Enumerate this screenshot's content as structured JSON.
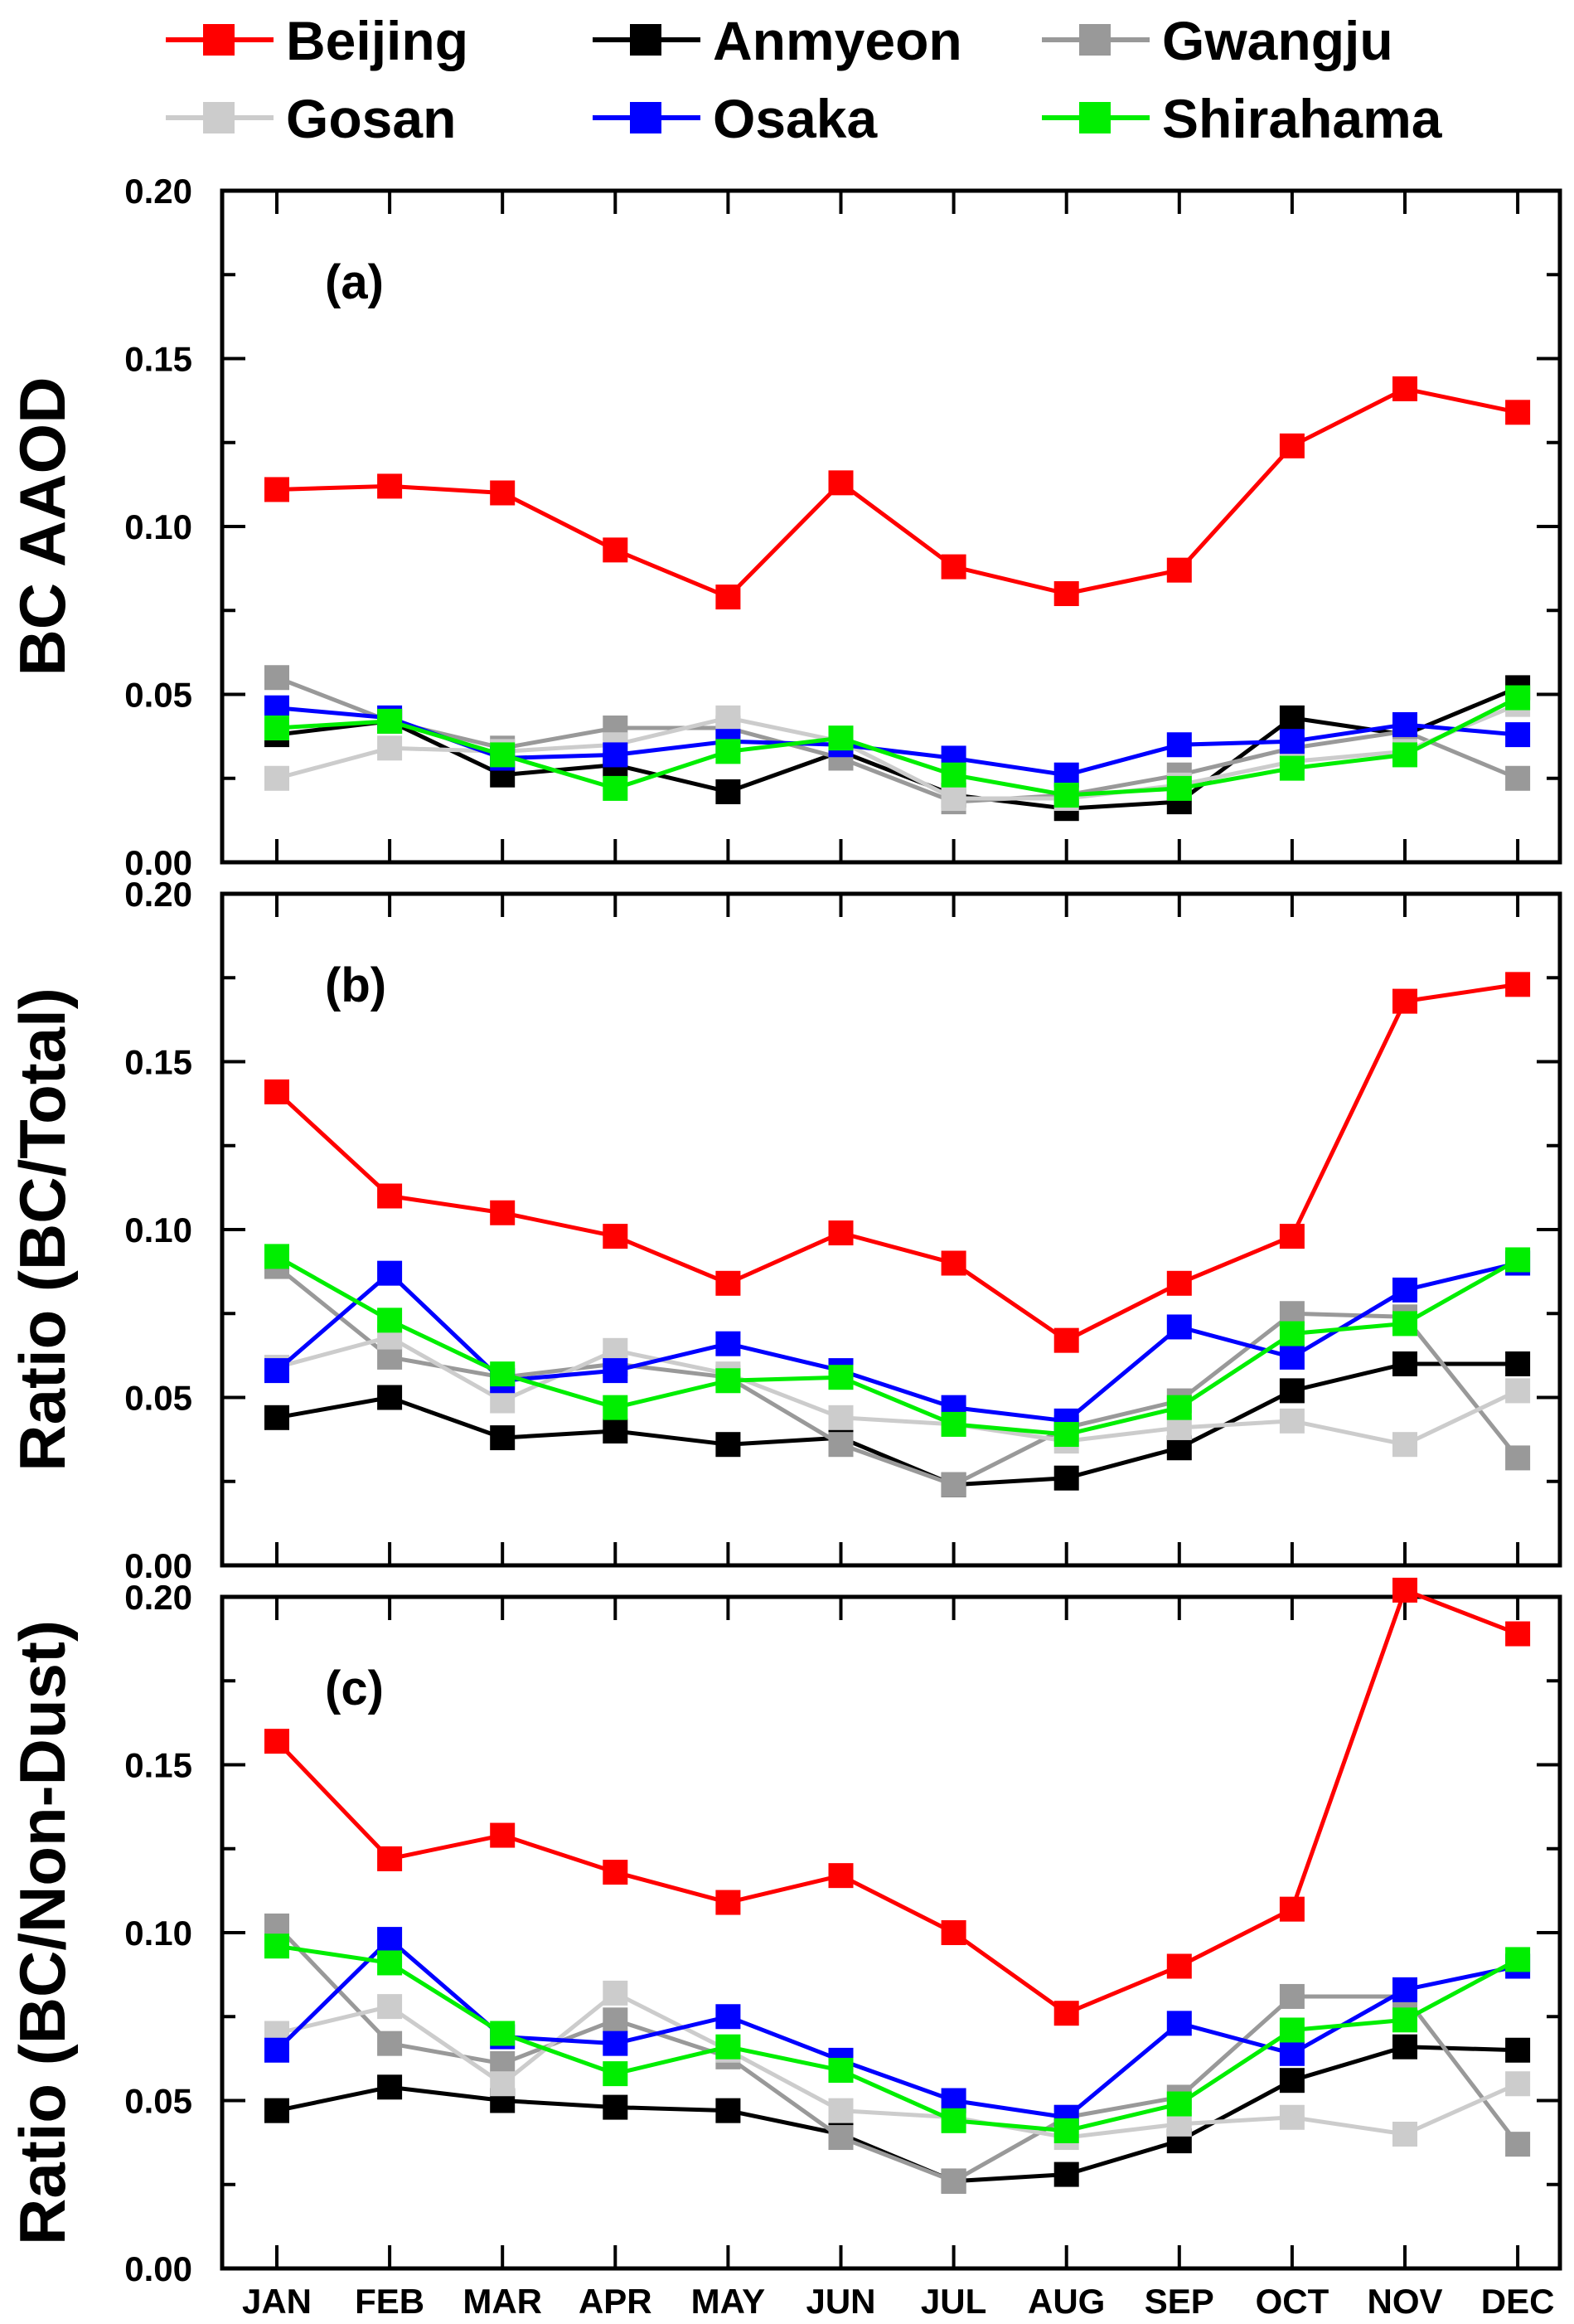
{
  "legend": {
    "placement": "top",
    "entries": [
      "Beijing",
      "Anmyeon",
      "Gwangju",
      "Gosan",
      "Osaka",
      "Shirahama"
    ]
  },
  "colors": {
    "Beijing": "#ff0000",
    "Anmyeon": "#000000",
    "Gwangju": "#999999",
    "Gosan": "#cccccc",
    "Osaka": "#0000ff",
    "Shirahama": "#00ee00"
  },
  "chart_data": [
    {
      "type": "line",
      "panel": "(a)",
      "ylabel": "BC AAOD",
      "ylim": [
        0,
        0.2
      ],
      "yticks": [
        "0.00",
        "0.05",
        "0.10",
        "0.15",
        "0.20"
      ],
      "categories": [
        "JAN",
        "FEB",
        "MAR",
        "APR",
        "MAY",
        "JUN",
        "JUL",
        "AUG",
        "SEP",
        "OCT",
        "NOV",
        "DEC"
      ],
      "series": [
        {
          "name": "Beijing",
          "values": [
            0.111,
            0.112,
            0.11,
            0.093,
            0.079,
            0.113,
            0.088,
            0.08,
            0.087,
            0.124,
            0.141,
            0.134
          ]
        },
        {
          "name": "Anmyeon",
          "values": [
            0.038,
            0.042,
            0.026,
            0.029,
            0.021,
            0.033,
            0.02,
            0.016,
            0.018,
            0.043,
            0.038,
            0.052
          ]
        },
        {
          "name": "Gwangju",
          "values": [
            0.055,
            0.042,
            0.034,
            0.04,
            0.04,
            0.031,
            0.018,
            0.02,
            0.026,
            0.034,
            0.039,
            0.025
          ]
        },
        {
          "name": "Gosan",
          "values": [
            0.025,
            0.034,
            0.033,
            0.035,
            0.043,
            0.036,
            0.019,
            0.019,
            0.023,
            0.03,
            0.033,
            0.047
          ]
        },
        {
          "name": "Osaka",
          "values": [
            0.046,
            0.043,
            0.031,
            0.032,
            0.036,
            0.035,
            0.031,
            0.026,
            0.035,
            0.036,
            0.041,
            0.038
          ]
        },
        {
          "name": "Shirahama",
          "values": [
            0.04,
            0.042,
            0.032,
            0.022,
            0.033,
            0.037,
            0.026,
            0.02,
            0.022,
            0.028,
            0.032,
            0.049
          ]
        }
      ]
    },
    {
      "type": "line",
      "panel": "(b)",
      "ylabel": "Ratio (BC/Total)",
      "ylim": [
        0,
        0.2
      ],
      "yticks": [
        "0.00",
        "0.05",
        "0.10",
        "0.15",
        "0.20"
      ],
      "categories": [
        "JAN",
        "FEB",
        "MAR",
        "APR",
        "MAY",
        "JUN",
        "JUL",
        "AUG",
        "SEP",
        "OCT",
        "NOV",
        "DEC"
      ],
      "series": [
        {
          "name": "Beijing",
          "values": [
            0.141,
            0.11,
            0.105,
            0.098,
            0.084,
            0.099,
            0.09,
            0.067,
            0.084,
            0.098,
            0.168,
            0.173
          ]
        },
        {
          "name": "Anmyeon",
          "values": [
            0.044,
            0.05,
            0.038,
            0.04,
            0.036,
            0.038,
            0.024,
            0.026,
            0.035,
            0.052,
            0.06,
            0.06
          ]
        },
        {
          "name": "Gwangju",
          "values": [
            0.089,
            0.062,
            0.056,
            0.06,
            0.056,
            0.036,
            0.024,
            0.041,
            0.049,
            0.075,
            0.074,
            0.032
          ]
        },
        {
          "name": "Gosan",
          "values": [
            0.059,
            0.068,
            0.049,
            0.064,
            0.057,
            0.044,
            0.042,
            0.037,
            0.041,
            0.043,
            0.036,
            0.052
          ]
        },
        {
          "name": "Osaka",
          "values": [
            0.058,
            0.087,
            0.055,
            0.058,
            0.066,
            0.058,
            0.047,
            0.043,
            0.071,
            0.062,
            0.082,
            0.09
          ]
        },
        {
          "name": "Shirahama",
          "values": [
            0.092,
            0.073,
            0.057,
            0.047,
            0.055,
            0.056,
            0.042,
            0.039,
            0.047,
            0.069,
            0.072,
            0.091
          ]
        }
      ]
    },
    {
      "type": "line",
      "panel": "(c)",
      "ylabel": "Ratio (BC/Non-Dust)",
      "ylim": [
        0,
        0.2
      ],
      "yticks": [
        "0.00",
        "0.05",
        "0.10",
        "0.15",
        "0.20"
      ],
      "categories": [
        "JAN",
        "FEB",
        "MAR",
        "APR",
        "MAY",
        "JUN",
        "JUL",
        "AUG",
        "SEP",
        "OCT",
        "NOV",
        "DEC"
      ],
      "series": [
        {
          "name": "Beijing",
          "values": [
            0.157,
            0.122,
            0.129,
            0.118,
            0.109,
            0.117,
            0.1,
            0.076,
            0.09,
            0.107,
            0.202,
            0.189
          ]
        },
        {
          "name": "Anmyeon",
          "values": [
            0.047,
            0.054,
            0.05,
            0.048,
            0.047,
            0.04,
            0.026,
            0.028,
            0.038,
            0.056,
            0.066,
            0.065
          ]
        },
        {
          "name": "Gwangju",
          "values": [
            0.102,
            0.067,
            0.061,
            0.074,
            0.063,
            0.039,
            0.026,
            0.045,
            0.051,
            0.081,
            0.081,
            0.037
          ]
        },
        {
          "name": "Gosan",
          "values": [
            0.07,
            0.078,
            0.055,
            0.082,
            0.065,
            0.047,
            0.045,
            0.039,
            0.043,
            0.045,
            0.04,
            0.055
          ]
        },
        {
          "name": "Osaka",
          "values": [
            0.065,
            0.098,
            0.069,
            0.067,
            0.075,
            0.062,
            0.05,
            0.045,
            0.073,
            0.064,
            0.083,
            0.09
          ]
        },
        {
          "name": "Shirahama",
          "values": [
            0.096,
            0.091,
            0.07,
            0.058,
            0.066,
            0.059,
            0.044,
            0.041,
            0.049,
            0.071,
            0.074,
            0.092
          ]
        }
      ]
    }
  ]
}
